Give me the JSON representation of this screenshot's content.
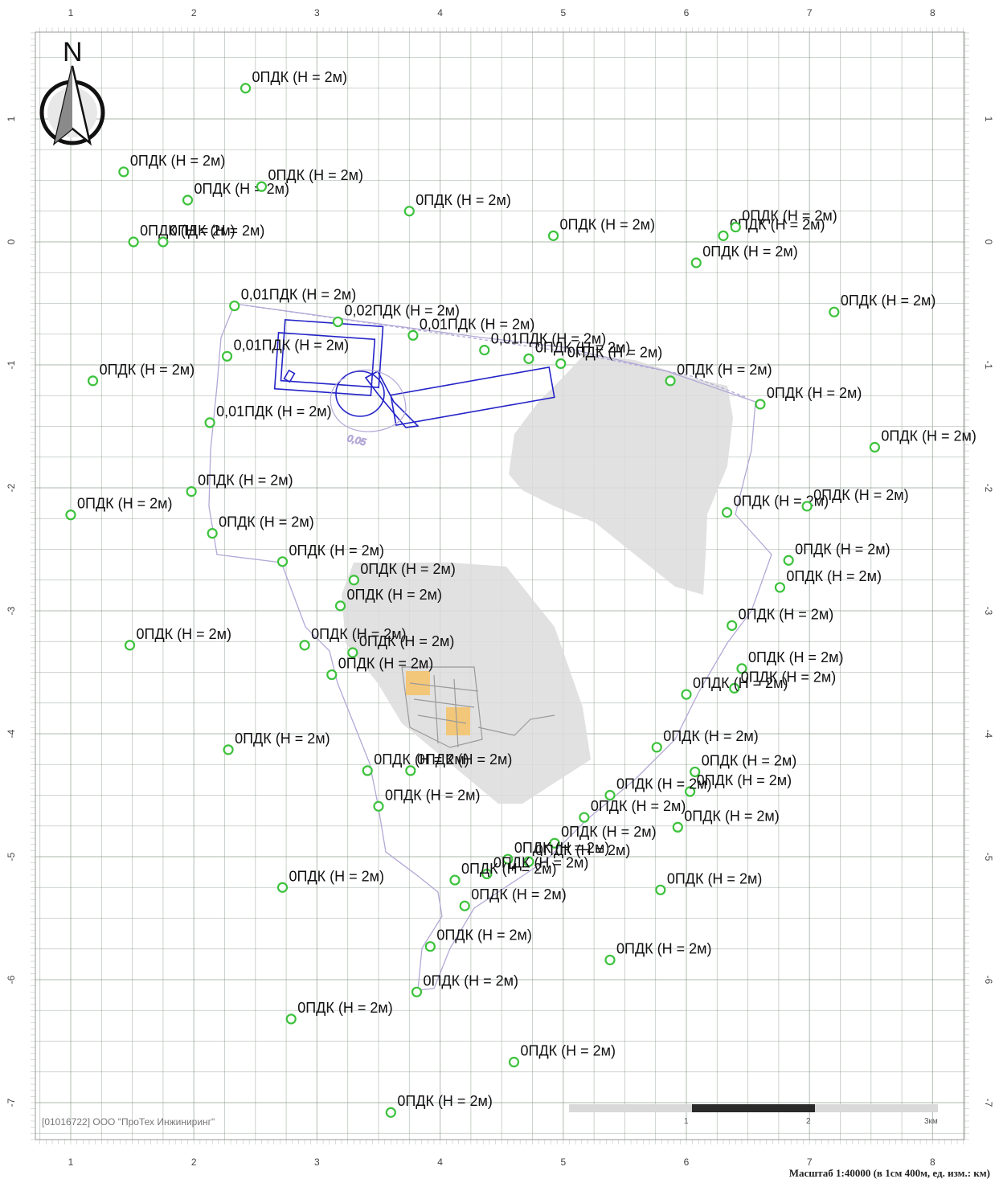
{
  "axes": {
    "x_ticks": [
      "1",
      "2",
      "3",
      "4",
      "5",
      "6",
      "7",
      "8"
    ],
    "y_ticks": [
      "1",
      "0",
      "-1",
      "-2",
      "-3",
      "-4",
      "-5",
      "-6",
      "-7"
    ]
  },
  "north_arrow": {
    "letter": "N",
    "icon": "north-arrow-icon"
  },
  "copyright": "[01016722] ООО \"ПроТех Инжиниринг\"",
  "scale": {
    "text": "Масштаб 1:40000 (в 1см 400м, ед. изм.: км)",
    "bar_labels": [
      "1",
      "2",
      "3км"
    ]
  },
  "isolines": [
    {
      "label": "0,05"
    }
  ],
  "points": [
    {
      "label": "0ПДК (H = 2м)",
      "x": 2.42,
      "y": 1.25
    },
    {
      "label": "0ПДК (H = 2м)",
      "x": 1.43,
      "y": 0.57
    },
    {
      "label": "0ПДК (H = 2м)",
      "x": 1.95,
      "y": 0.34
    },
    {
      "label": "0ПДК (H = 2м)",
      "x": 2.55,
      "y": 0.45
    },
    {
      "label": "0ПДК (H = 2м)",
      "x": 1.51,
      "y": 0.0
    },
    {
      "label": "0ПДК (H = 2м)",
      "x": 1.75,
      "y": 0.0
    },
    {
      "label": "0ПДК (H = 2м)",
      "x": 3.75,
      "y": 0.25
    },
    {
      "label": "0ПДК (H = 2м)",
      "x": 4.92,
      "y": 0.05
    },
    {
      "label": "0ПДК (H = 2м)",
      "x": 6.3,
      "y": 0.05
    },
    {
      "label": "0ПДК (H = 2м)",
      "x": 6.4,
      "y": 0.12
    },
    {
      "label": "0ПДК (H = 2м)",
      "x": 6.08,
      "y": -0.17
    },
    {
      "label": "0ПДК (H = 2м)",
      "x": 7.2,
      "y": -0.57
    },
    {
      "label": "0,01ПДК (H = 2м)",
      "x": 2.33,
      "y": -0.52
    },
    {
      "label": "0,02ПДК (H = 2м)",
      "x": 3.17,
      "y": -0.65
    },
    {
      "label": "0,01ПДК (H = 2м)",
      "x": 3.78,
      "y": -0.76
    },
    {
      "label": "0,01ПДК (H = 2м)",
      "x": 2.27,
      "y": -0.93
    },
    {
      "label": "0,01ПДК (H = 2м)",
      "x": 4.36,
      "y": -0.88
    },
    {
      "label": "0ПДК (H = 2м)",
      "x": 4.72,
      "y": -0.95
    },
    {
      "label": "0ПДК (H = 2м)",
      "x": 4.98,
      "y": -0.99
    },
    {
      "label": "0ПДК (H = 2м)",
      "x": 1.18,
      "y": -1.13
    },
    {
      "label": "0ПДК (H = 2м)",
      "x": 5.87,
      "y": -1.13
    },
    {
      "label": "0ПДК (H = 2м)",
      "x": 6.6,
      "y": -1.32
    },
    {
      "label": "0,01ПДК (H = 2м)",
      "x": 2.13,
      "y": -1.47
    },
    {
      "label": "0ПДК (H = 2м)",
      "x": 7.53,
      "y": -1.67
    },
    {
      "label": "0ПДК (H = 2м)",
      "x": 1.98,
      "y": -2.03
    },
    {
      "label": "0ПДК (H = 2м)",
      "x": 1.0,
      "y": -2.22
    },
    {
      "label": "0ПДК (H = 2м)",
      "x": 6.33,
      "y": -2.2
    },
    {
      "label": "0ПДК (H = 2м)",
      "x": 6.98,
      "y": -2.15
    },
    {
      "label": "0ПДК (H = 2м)",
      "x": 2.15,
      "y": -2.37
    },
    {
      "label": "0ПДК (H = 2м)",
      "x": 2.72,
      "y": -2.6
    },
    {
      "label": "0ПДК (H = 2м)",
      "x": 6.83,
      "y": -2.59
    },
    {
      "label": "0ПДК (H = 2м)",
      "x": 3.3,
      "y": -2.75
    },
    {
      "label": "0ПДК (H = 2м)",
      "x": 6.76,
      "y": -2.81
    },
    {
      "label": "0ПДК (H = 2м)",
      "x": 3.19,
      "y": -2.96
    },
    {
      "label": "0ПДК (H = 2м)",
      "x": 6.37,
      "y": -3.12
    },
    {
      "label": "0ПДК (H = 2м)",
      "x": 1.48,
      "y": -3.28
    },
    {
      "label": "0ПДК (H = 2м)",
      "x": 2.9,
      "y": -3.28
    },
    {
      "label": "0ПДК (H = 2м)",
      "x": 3.29,
      "y": -3.34
    },
    {
      "label": "0ПДК (H = 2м)",
      "x": 3.12,
      "y": -3.52
    },
    {
      "label": "0ПДК (H = 2м)",
      "x": 6.45,
      "y": -3.47
    },
    {
      "label": "0ПДК (H = 2м)",
      "x": 6.39,
      "y": -3.63
    },
    {
      "label": "0ПДК (H = 2м)",
      "x": 6.0,
      "y": -3.68
    },
    {
      "label": "0ПДК (H = 2м)",
      "x": 2.28,
      "y": -4.13
    },
    {
      "label": "0ПДК (H = 2м)",
      "x": 5.76,
      "y": -4.11
    },
    {
      "label": "0ПДК (H = 2м)",
      "x": 3.41,
      "y": -4.3
    },
    {
      "label": "0ПДК (H = 2м)",
      "x": 3.76,
      "y": -4.3
    },
    {
      "label": "0ПДК (H = 2м)",
      "x": 6.07,
      "y": -4.31
    },
    {
      "label": "0ПДК (H = 2м)",
      "x": 6.03,
      "y": -4.47
    },
    {
      "label": "0ПДК (H = 2м)",
      "x": 5.38,
      "y": -4.5
    },
    {
      "label": "0ПДК (H = 2м)",
      "x": 3.5,
      "y": -4.59
    },
    {
      "label": "0ПДК (H = 2м)",
      "x": 5.17,
      "y": -4.68
    },
    {
      "label": "0ПДК (H = 2м)",
      "x": 5.93,
      "y": -4.76
    },
    {
      "label": "0ПДК (H = 2м)",
      "x": 4.93,
      "y": -4.89
    },
    {
      "label": "0ПДК (H = 2м)",
      "x": 4.72,
      "y": -5.04
    },
    {
      "label": "0ПДК (H = 2м)",
      "x": 4.55,
      "y": -5.02
    },
    {
      "label": "0ПДК (H = 2м)",
      "x": 4.38,
      "y": -5.14
    },
    {
      "label": "0ПДК (H = 2м)",
      "x": 4.12,
      "y": -5.19
    },
    {
      "label": "0ПДК (H = 2м)",
      "x": 2.72,
      "y": -5.25
    },
    {
      "label": "0ПДК (H = 2м)",
      "x": 5.79,
      "y": -5.27
    },
    {
      "label": "0ПДК (H = 2м)",
      "x": 4.2,
      "y": -5.4
    },
    {
      "label": "0ПДК (H = 2м)",
      "x": 3.92,
      "y": -5.73
    },
    {
      "label": "0ПДК (H = 2м)",
      "x": 5.38,
      "y": -5.84
    },
    {
      "label": "0ПДК (H = 2м)",
      "x": 3.81,
      "y": -6.1
    },
    {
      "label": "0ПДК (H = 2м)",
      "x": 2.79,
      "y": -6.32
    },
    {
      "label": "0ПДК (H = 2м)",
      "x": 4.6,
      "y": -6.67
    },
    {
      "label": "0ПДК (H = 2м)",
      "x": 3.6,
      "y": -7.08
    }
  ],
  "colors": {
    "grid": "#8a9a8a",
    "point": "#3cc23c",
    "source": "#2424c8",
    "isoline": "#b3a8d6",
    "industrial_area": "#dcdcdc",
    "building_fill": "#f3c779"
  }
}
